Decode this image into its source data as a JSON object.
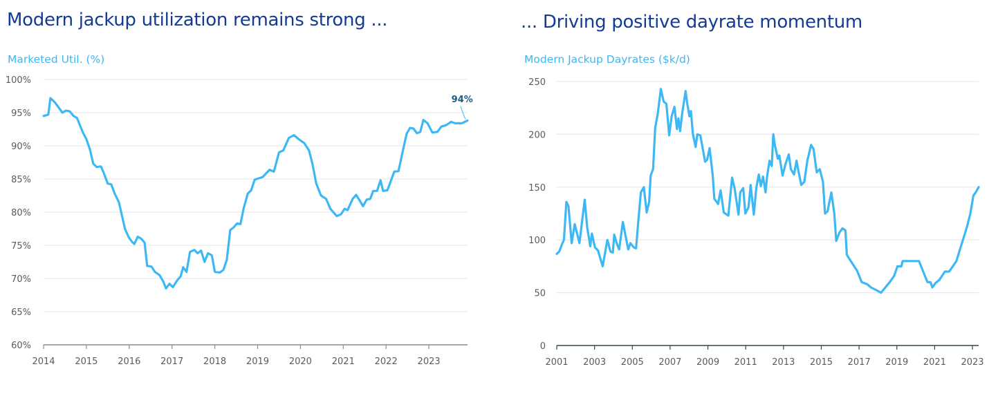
{
  "chart_data": [
    {
      "type": "line",
      "title": "Modern jackup utilization remains strong ...",
      "ylabel": "Marketed Util. (%)",
      "xlabel": "",
      "xlim": [
        2014,
        2023.9
      ],
      "ylim": [
        60,
        100
      ],
      "grid": true,
      "x_ticks": [
        "2014",
        "2015",
        "2016",
        "2017",
        "2018",
        "2019",
        "2020",
        "2021",
        "2022",
        "2023"
      ],
      "y_ticks": [
        "60%",
        "65%",
        "70%",
        "75%",
        "80%",
        "85%",
        "90%",
        "95%",
        "100%"
      ],
      "annotation": "94%",
      "color": "#3db8f5",
      "series": [
        {
          "name": "Marketed Util.",
          "points": [
            [
              2014.0,
              94.5
            ],
            [
              2014.11,
              94.7
            ],
            [
              2014.16,
              97.2
            ],
            [
              2014.27,
              96.5
            ],
            [
              2014.44,
              95.0
            ],
            [
              2014.52,
              95.3
            ],
            [
              2014.61,
              95.2
            ],
            [
              2014.7,
              94.5
            ],
            [
              2014.78,
              94.2
            ],
            [
              2014.92,
              92.0
            ],
            [
              2015.0,
              91.0
            ],
            [
              2015.08,
              89.5
            ],
            [
              2015.16,
              87.3
            ],
            [
              2015.24,
              86.8
            ],
            [
              2015.34,
              86.9
            ],
            [
              2015.4,
              86.0
            ],
            [
              2015.5,
              84.3
            ],
            [
              2015.58,
              84.2
            ],
            [
              2015.66,
              82.8
            ],
            [
              2015.76,
              81.5
            ],
            [
              2015.83,
              79.5
            ],
            [
              2015.9,
              77.5
            ],
            [
              2015.99,
              76.2
            ],
            [
              2016.07,
              75.5
            ],
            [
              2016.12,
              75.2
            ],
            [
              2016.2,
              76.3
            ],
            [
              2016.28,
              76.0
            ],
            [
              2016.36,
              75.4
            ],
            [
              2016.42,
              71.9
            ],
            [
              2016.52,
              71.8
            ],
            [
              2016.6,
              71.0
            ],
            [
              2016.71,
              70.5
            ],
            [
              2016.8,
              69.5
            ],
            [
              2016.86,
              68.5
            ],
            [
              2016.94,
              69.2
            ],
            [
              2017.02,
              68.7
            ],
            [
              2017.12,
              69.7
            ],
            [
              2017.2,
              70.3
            ],
            [
              2017.26,
              71.7
            ],
            [
              2017.34,
              71.0
            ],
            [
              2017.42,
              74.0
            ],
            [
              2017.52,
              74.3
            ],
            [
              2017.6,
              73.8
            ],
            [
              2017.68,
              74.2
            ],
            [
              2017.76,
              72.5
            ],
            [
              2017.84,
              73.8
            ],
            [
              2017.93,
              73.5
            ],
            [
              2018.0,
              71.0
            ],
            [
              2018.12,
              70.9
            ],
            [
              2018.2,
              71.3
            ],
            [
              2018.28,
              72.8
            ],
            [
              2018.36,
              77.3
            ],
            [
              2018.44,
              77.7
            ],
            [
              2018.52,
              78.3
            ],
            [
              2018.6,
              78.2
            ],
            [
              2018.67,
              80.5
            ],
            [
              2018.77,
              82.8
            ],
            [
              2018.85,
              83.3
            ],
            [
              2018.93,
              84.9
            ],
            [
              2019.12,
              85.3
            ],
            [
              2019.28,
              86.4
            ],
            [
              2019.38,
              86.1
            ],
            [
              2019.5,
              89.0
            ],
            [
              2019.6,
              89.3
            ],
            [
              2019.73,
              91.2
            ],
            [
              2019.85,
              91.6
            ],
            [
              2019.96,
              91.0
            ],
            [
              2020.09,
              90.4
            ],
            [
              2020.2,
              89.3
            ],
            [
              2020.28,
              87.3
            ],
            [
              2020.37,
              84.3
            ],
            [
              2020.48,
              82.5
            ],
            [
              2020.6,
              82.0
            ],
            [
              2020.7,
              80.5
            ],
            [
              2020.85,
              79.4
            ],
            [
              2020.95,
              79.7
            ],
            [
              2021.03,
              80.5
            ],
            [
              2021.1,
              80.3
            ],
            [
              2021.22,
              82.0
            ],
            [
              2021.3,
              82.6
            ],
            [
              2021.38,
              81.8
            ],
            [
              2021.46,
              80.9
            ],
            [
              2021.55,
              81.9
            ],
            [
              2021.63,
              82.0
            ],
            [
              2021.7,
              83.2
            ],
            [
              2021.79,
              83.2
            ],
            [
              2021.87,
              84.8
            ],
            [
              2021.93,
              83.2
            ],
            [
              2022.03,
              83.3
            ],
            [
              2022.1,
              84.5
            ],
            [
              2022.19,
              86.1
            ],
            [
              2022.29,
              86.2
            ],
            [
              2022.4,
              89.5
            ],
            [
              2022.48,
              91.8
            ],
            [
              2022.56,
              92.7
            ],
            [
              2022.64,
              92.6
            ],
            [
              2022.72,
              91.9
            ],
            [
              2022.8,
              92.1
            ],
            [
              2022.87,
              93.9
            ],
            [
              2022.97,
              93.4
            ],
            [
              2023.08,
              92.0
            ],
            [
              2023.2,
              92.1
            ],
            [
              2023.29,
              92.9
            ],
            [
              2023.4,
              93.1
            ],
            [
              2023.52,
              93.6
            ],
            [
              2023.61,
              93.4
            ],
            [
              2023.77,
              93.4
            ],
            [
              2023.9,
              93.8
            ]
          ]
        }
      ]
    },
    {
      "type": "line",
      "title": "... Driving positive dayrate momentum",
      "ylabel": "Modern Jackup Dayrates ($k/d)",
      "xlabel": "",
      "xlim": [
        2001,
        2023.33
      ],
      "ylim": [
        0,
        250
      ],
      "grid": true,
      "x_ticks": [
        "2001",
        "2003",
        "2005",
        "2007",
        "2009",
        "2011",
        "2013",
        "2015",
        "2017",
        "2019",
        "2021",
        "2023"
      ],
      "y_ticks": [
        "0",
        "50",
        "100",
        "150",
        "200",
        "250"
      ],
      "color": "#3db8f5",
      "series": [
        {
          "name": "Modern Jackup Dayrates",
          "points": [
            [
              2001.0,
              86.8
            ],
            [
              2001.13,
              89
            ],
            [
              2001.3,
              97
            ],
            [
              2001.38,
              100
            ],
            [
              2001.51,
              136
            ],
            [
              2001.62,
              132
            ],
            [
              2001.79,
              97
            ],
            [
              2001.95,
              115
            ],
            [
              2002.2,
              97
            ],
            [
              2002.48,
              138
            ],
            [
              2002.61,
              112
            ],
            [
              2002.77,
              94
            ],
            [
              2002.86,
              106
            ],
            [
              2003.02,
              93
            ],
            [
              2003.18,
              90
            ],
            [
              2003.43,
              75
            ],
            [
              2003.68,
              100
            ],
            [
              2003.84,
              89
            ],
            [
              2003.97,
              88
            ],
            [
              2004.04,
              105
            ],
            [
              2004.17,
              97
            ],
            [
              2004.3,
              91
            ],
            [
              2004.5,
              117
            ],
            [
              2004.78,
              91
            ],
            [
              2004.9,
              97
            ],
            [
              2005.07,
              93
            ],
            [
              2005.2,
              92
            ],
            [
              2005.31,
              116
            ],
            [
              2005.45,
              145
            ],
            [
              2005.61,
              150
            ],
            [
              2005.76,
              126
            ],
            [
              2005.89,
              136
            ],
            [
              2005.97,
              161
            ],
            [
              2006.1,
              167
            ],
            [
              2006.21,
              206
            ],
            [
              2006.34,
              219
            ],
            [
              2006.51,
              243
            ],
            [
              2006.66,
              231
            ],
            [
              2006.8,
              229
            ],
            [
              2006.95,
              199
            ],
            [
              2007.08,
              217
            ],
            [
              2007.23,
              226
            ],
            [
              2007.36,
              205
            ],
            [
              2007.44,
              215
            ],
            [
              2007.53,
              203
            ],
            [
              2007.64,
              220
            ],
            [
              2007.82,
              241
            ],
            [
              2007.9,
              230
            ],
            [
              2008.02,
              217
            ],
            [
              2008.1,
              222
            ],
            [
              2008.2,
              201
            ],
            [
              2008.35,
              188
            ],
            [
              2008.44,
              200
            ],
            [
              2008.6,
              199
            ],
            [
              2008.85,
              174
            ],
            [
              2008.96,
              176
            ],
            [
              2009.09,
              187
            ],
            [
              2009.25,
              162
            ],
            [
              2009.34,
              139
            ],
            [
              2009.54,
              134
            ],
            [
              2009.67,
              147
            ],
            [
              2009.84,
              126
            ],
            [
              2010.08,
              123
            ],
            [
              2010.28,
              159
            ],
            [
              2010.41,
              149
            ],
            [
              2010.62,
              124
            ],
            [
              2010.71,
              145
            ],
            [
              2010.87,
              149
            ],
            [
              2010.98,
              125
            ],
            [
              2011.15,
              131
            ],
            [
              2011.26,
              152
            ],
            [
              2011.43,
              124
            ],
            [
              2011.56,
              149
            ],
            [
              2011.69,
              162
            ],
            [
              2011.8,
              151
            ],
            [
              2011.92,
              160
            ],
            [
              2012.05,
              145
            ],
            [
              2012.13,
              160
            ],
            [
              2012.26,
              175
            ],
            [
              2012.38,
              170
            ],
            [
              2012.46,
              200
            ],
            [
              2012.54,
              190
            ],
            [
              2012.7,
              177
            ],
            [
              2012.78,
              180
            ],
            [
              2012.95,
              161
            ],
            [
              2013.11,
              172
            ],
            [
              2013.28,
              181
            ],
            [
              2013.39,
              167
            ],
            [
              2013.56,
              162
            ],
            [
              2013.69,
              175
            ],
            [
              2013.77,
              167
            ],
            [
              2013.94,
              152
            ],
            [
              2014.1,
              155
            ],
            [
              2014.26,
              175
            ],
            [
              2014.46,
              190
            ],
            [
              2014.59,
              186
            ],
            [
              2014.76,
              164
            ],
            [
              2014.92,
              167
            ],
            [
              2015.09,
              155
            ],
            [
              2015.2,
              125
            ],
            [
              2015.33,
              127
            ],
            [
              2015.53,
              145
            ],
            [
              2015.69,
              125
            ],
            [
              2015.79,
              99
            ],
            [
              2015.96,
              107
            ],
            [
              2016.12,
              111
            ],
            [
              2016.28,
              109
            ],
            [
              2016.35,
              86
            ],
            [
              2016.56,
              80
            ],
            [
              2016.89,
              71
            ],
            [
              2017.14,
              60
            ],
            [
              2017.43,
              58
            ],
            [
              2017.63,
              55
            ],
            [
              2017.96,
              52
            ],
            [
              2018.16,
              50
            ],
            [
              2018.62,
              60
            ],
            [
              2018.86,
              66
            ],
            [
              2019.03,
              75
            ],
            [
              2019.24,
              75
            ],
            [
              2019.3,
              80
            ],
            [
              2020.17,
              80
            ],
            [
              2020.62,
              60
            ],
            [
              2020.78,
              60
            ],
            [
              2020.88,
              55
            ],
            [
              2021.04,
              59
            ],
            [
              2021.24,
              62
            ],
            [
              2021.54,
              70
            ],
            [
              2021.77,
              70
            ],
            [
              2022.15,
              80
            ],
            [
              2022.72,
              113
            ],
            [
              2022.89,
              125
            ],
            [
              2023.05,
              142
            ],
            [
              2023.17,
              145
            ],
            [
              2023.33,
              150
            ]
          ]
        }
      ]
    }
  ]
}
